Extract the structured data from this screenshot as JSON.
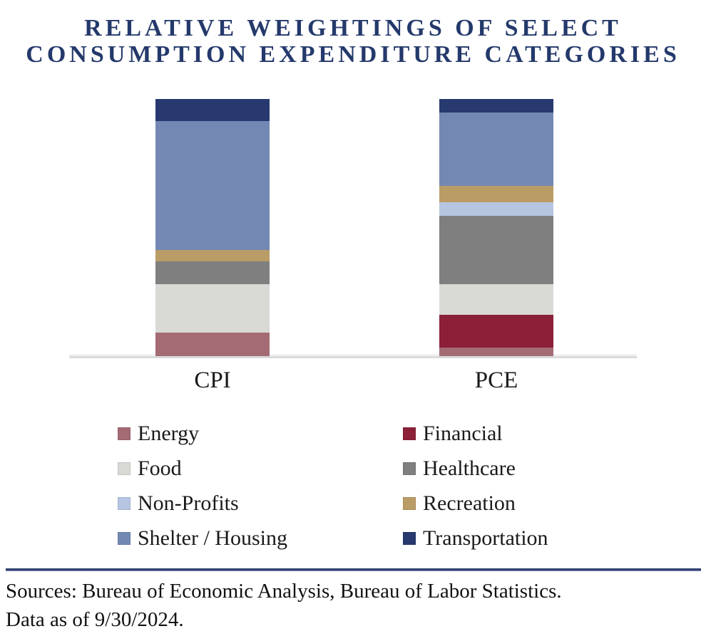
{
  "title": {
    "line1": "RELATIVE WEIGHTINGS OF SELECT",
    "line2": "CONSUMPTION EXPENDITURE CATEGORIES"
  },
  "chart_data": {
    "type": "bar",
    "stacked": true,
    "title": "Relative Weightings of Select Consumption Expenditure Categories",
    "categories": [
      "CPI",
      "PCE"
    ],
    "unit": "approx percent weight (no value axis shown; estimated from segment heights)",
    "bars_drawn_equal_total_height": true,
    "grid": false,
    "value_axis_labels_shown": false,
    "legend_position": "bottom",
    "series": [
      {
        "name": "Energy",
        "color": "#A46B75",
        "values": [
          6.7,
          2.4
        ]
      },
      {
        "name": "Financial",
        "color": "#8B2038",
        "values": [
          0,
          9.3
        ]
      },
      {
        "name": "Food",
        "color": "#D9D9D6",
        "values": [
          13.5,
          8.6
        ]
      },
      {
        "name": "Healthcare",
        "color": "#7F7F7F",
        "values": [
          6.4,
          19.3
        ]
      },
      {
        "name": "Non-Profits",
        "color": "#B6C6E2",
        "values": [
          0,
          3.9
        ]
      },
      {
        "name": "Recreation",
        "color": "#BA9C66",
        "values": [
          3.3,
          4.6
        ]
      },
      {
        "name": "Shelter / Housing",
        "color": "#7389B4",
        "values": [
          36.2,
          20.7
        ]
      },
      {
        "name": "Transportation",
        "color": "#27396F",
        "values": [
          6.3,
          3.8
        ]
      }
    ],
    "stack_order_bottom_to_top": [
      "Energy",
      "Financial",
      "Food",
      "Healthcare",
      "Non-Profits",
      "Recreation",
      "Shelter / Housing",
      "Transportation"
    ]
  },
  "colors": {
    "title_text": "#24396B",
    "footer_rule": "#2E3E6F",
    "axis_baseline": "#D9D9D9",
    "body_text": "#1A1A1A"
  },
  "footer": {
    "sources": "Sources: Bureau of Economic Analysis, Bureau of Labor Statistics.",
    "data_as_of": "Data as of 9/30/2024."
  }
}
